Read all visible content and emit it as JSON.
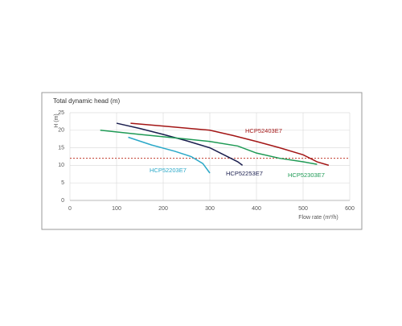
{
  "chart_data": {
    "type": "line",
    "title": "Total dynamic head (m)",
    "y_label": "H (m)",
    "x_label": "Flow rate (m³/h)",
    "xlim": [
      0,
      600
    ],
    "xticks": [
      0,
      100,
      200,
      300,
      400,
      500,
      600
    ],
    "ylim": [
      0,
      25
    ],
    "yticks": [
      0,
      5,
      10,
      15,
      20,
      25
    ],
    "grid": true,
    "reference_line": {
      "value": 12,
      "color": "#c0392b"
    },
    "series": [
      {
        "name": "HCP52403E7",
        "color": "#a31515",
        "x": [
          130,
          200,
          300,
          350,
          400,
          450,
          500,
          530,
          555
        ],
        "values": [
          22,
          21.2,
          20,
          18.5,
          16.8,
          15,
          13,
          11,
          10
        ]
      },
      {
        "name": "HCP52253E7",
        "color": "#1b1f4f",
        "x": [
          100,
          150,
          200,
          250,
          300,
          330,
          360,
          370
        ],
        "values": [
          22,
          20.5,
          18.8,
          17,
          15,
          13,
          11,
          10
        ]
      },
      {
        "name": "HCP52303E7",
        "color": "#1e9a55",
        "x": [
          65,
          150,
          250,
          300,
          360,
          400,
          450,
          500,
          530
        ],
        "values": [
          20,
          18.8,
          17.5,
          16.8,
          15.5,
          13.5,
          12,
          11,
          10.3
        ]
      },
      {
        "name": "HCP52203E7",
        "color": "#2aa8c8",
        "x": [
          125,
          175,
          225,
          260,
          285,
          300
        ],
        "values": [
          18,
          15.8,
          14,
          12.5,
          10.5,
          7.8
        ]
      }
    ]
  }
}
